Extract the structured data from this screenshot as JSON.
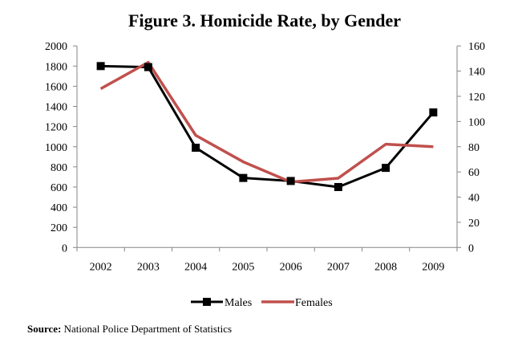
{
  "chart_data": {
    "type": "line",
    "title": "Figure 3. Homicide Rate, by Gender",
    "categories": [
      "2002",
      "2003",
      "2004",
      "2005",
      "2006",
      "2007",
      "2008",
      "2009"
    ],
    "series": [
      {
        "name": "Males",
        "axis": "left",
        "color": "#000000",
        "marker": "square",
        "values": [
          1800,
          1790,
          990,
          690,
          660,
          600,
          790,
          1340
        ]
      },
      {
        "name": "Females",
        "axis": "right",
        "color": "#c0504d",
        "marker": "none",
        "values": [
          126,
          147,
          89,
          68,
          52,
          55,
          82,
          80
        ]
      }
    ],
    "ylim_left": [
      0,
      2000
    ],
    "yticks_left": [
      "0",
      "200",
      "400",
      "600",
      "800",
      "1000",
      "1200",
      "1400",
      "1600",
      "1800",
      "2000"
    ],
    "ylim_right": [
      0,
      160
    ],
    "yticks_right": [
      "0",
      "20",
      "40",
      "60",
      "80",
      "100",
      "120",
      "140",
      "160"
    ],
    "xlabel": "",
    "ylabel": "",
    "grid": false,
    "legend_position": "bottom"
  },
  "source": {
    "label": "Source:",
    "text": " National Police Department of Statistics"
  }
}
